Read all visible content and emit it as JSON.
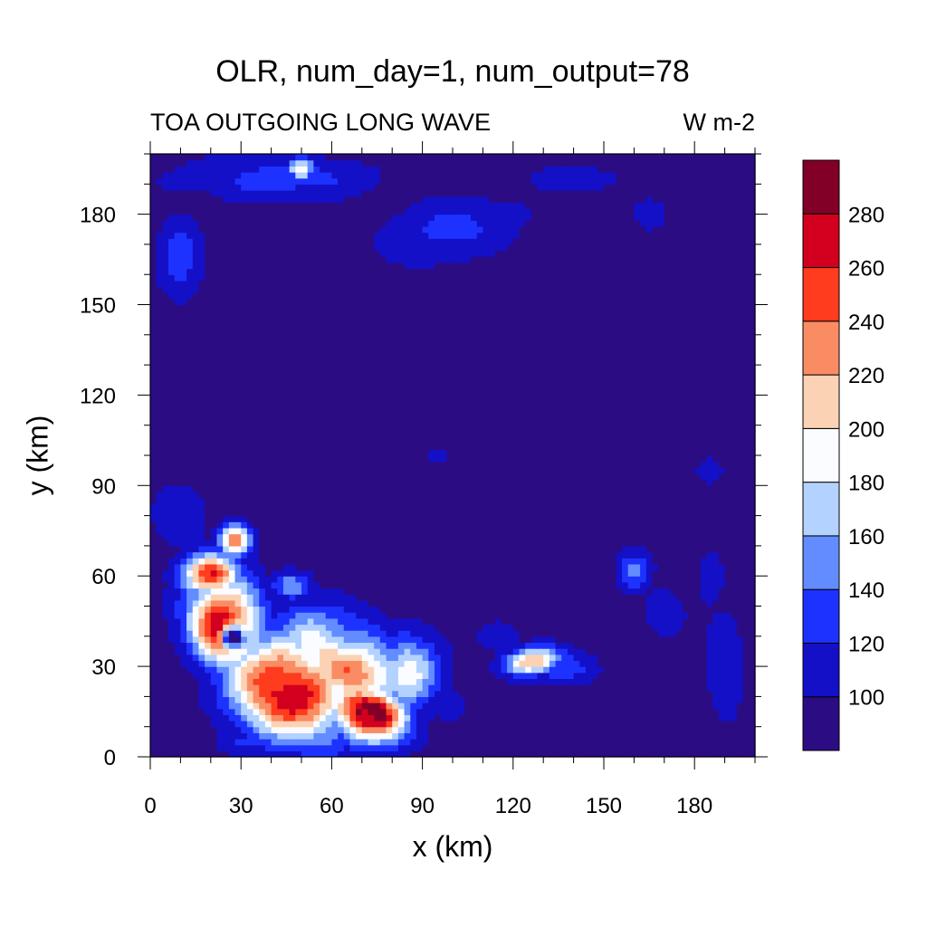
{
  "chart_data": {
    "type": "heatmap",
    "title": "OLR, num_day=1, num_output=78",
    "subtitle_left": "TOA OUTGOING LONG WAVE",
    "subtitle_right": "W m-2",
    "xlabel": "x (km)",
    "ylabel": "y (km)",
    "xlim": [
      0,
      200
    ],
    "ylim": [
      0,
      200
    ],
    "x_ticks": [
      0,
      30,
      60,
      90,
      120,
      150,
      180
    ],
    "y_ticks": [
      0,
      30,
      60,
      90,
      120,
      150,
      180
    ],
    "colorbar": {
      "levels": [
        100,
        120,
        140,
        160,
        180,
        200,
        220,
        240,
        260,
        280
      ],
      "colors": [
        "#2c0c82",
        "#1410c8",
        "#1e32ff",
        "#628cff",
        "#b4d2ff",
        "#fafcff",
        "#fcd2b4",
        "#fa8c64",
        "#ff3c1e",
        "#d2001e",
        "#820028"
      ]
    },
    "base_value": 90,
    "features": [
      {
        "x": 45,
        "y": 22,
        "rx": 22,
        "ry": 16,
        "angle": -35,
        "peak": 300
      },
      {
        "x": 72,
        "y": 14,
        "rx": 14,
        "ry": 10,
        "angle": -15,
        "peak": 300
      },
      {
        "x": 25,
        "y": 45,
        "rx": 13,
        "ry": 17,
        "angle": 20,
        "peak": 290
      },
      {
        "x": 20,
        "y": 60,
        "rx": 10,
        "ry": 8,
        "angle": 0,
        "peak": 275
      },
      {
        "x": 65,
        "y": 32,
        "rx": 24,
        "ry": 14,
        "angle": -30,
        "peak": 230
      },
      {
        "x": 85,
        "y": 28,
        "rx": 12,
        "ry": 14,
        "angle": 0,
        "peak": 185
      },
      {
        "x": 28,
        "y": 72,
        "rx": 6,
        "ry": 6,
        "angle": 0,
        "peak": 230
      },
      {
        "x": 127,
        "y": 32,
        "rx": 11,
        "ry": 5,
        "angle": 10,
        "peak": 215
      },
      {
        "x": 136,
        "y": 30,
        "rx": 11,
        "ry": 6,
        "angle": 0,
        "peak": 145
      },
      {
        "x": 47,
        "y": 57,
        "rx": 7,
        "ry": 5,
        "angle": 0,
        "peak": 165
      },
      {
        "x": 160,
        "y": 62,
        "rx": 6,
        "ry": 7,
        "angle": 0,
        "peak": 140
      },
      {
        "x": 170,
        "y": 48,
        "rx": 8,
        "ry": 10,
        "angle": 0,
        "peak": 115
      },
      {
        "x": 190,
        "y": 30,
        "rx": 8,
        "ry": 25,
        "angle": 0,
        "peak": 112
      },
      {
        "x": 185,
        "y": 60,
        "rx": 6,
        "ry": 12,
        "angle": 0,
        "peak": 110
      },
      {
        "x": 10,
        "y": 165,
        "rx": 8,
        "ry": 15,
        "angle": 0,
        "peak": 130
      },
      {
        "x": 40,
        "y": 192,
        "rx": 35,
        "ry": 8,
        "angle": 0,
        "peak": 130
      },
      {
        "x": 50,
        "y": 195,
        "rx": 5,
        "ry": 4,
        "angle": 0,
        "peak": 185
      },
      {
        "x": 100,
        "y": 175,
        "rx": 28,
        "ry": 12,
        "angle": 10,
        "peak": 122
      },
      {
        "x": 140,
        "y": 192,
        "rx": 20,
        "ry": 6,
        "angle": 0,
        "peak": 108
      },
      {
        "x": 165,
        "y": 180,
        "rx": 6,
        "ry": 6,
        "angle": 0,
        "peak": 115
      },
      {
        "x": 10,
        "y": 80,
        "rx": 10,
        "ry": 12,
        "angle": 0,
        "peak": 118
      },
      {
        "x": 115,
        "y": 40,
        "rx": 8,
        "ry": 6,
        "angle": 0,
        "peak": 112
      },
      {
        "x": 98,
        "y": 18,
        "rx": 10,
        "ry": 9,
        "angle": 0,
        "peak": 108
      },
      {
        "x": 30,
        "y": 5,
        "rx": 10,
        "ry": 5,
        "angle": 0,
        "peak": 120
      },
      {
        "x": 95,
        "y": 100,
        "rx": 8,
        "ry": 6,
        "angle": 0,
        "peak": 104
      },
      {
        "x": 185,
        "y": 95,
        "rx": 5,
        "ry": 5,
        "angle": 0,
        "peak": 110
      }
    ],
    "holes": [
      {
        "x": 27,
        "y": 40,
        "rx": 4,
        "ry": 4,
        "depth": 200
      },
      {
        "x": 72,
        "y": 14,
        "rx": 1.5,
        "ry": 1.2,
        "depth": 120
      }
    ]
  }
}
